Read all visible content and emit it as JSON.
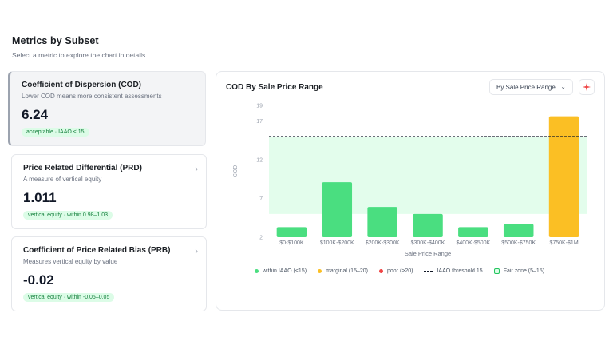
{
  "header": {
    "title": "Metrics by Subset",
    "subtitle": "Select a metric to explore the chart in details"
  },
  "metrics": [
    {
      "title": "Coefficient of Dispersion (COD)",
      "desc": "Lower COD means more consistent assessments",
      "value": "6.24",
      "badge": "acceptable · IAAO < 15"
    },
    {
      "title": "Price Related Differential (PRD)",
      "desc": "A measure of vertical equity",
      "value": "1.011",
      "badge": "vertical equity · within 0.98–1.03"
    },
    {
      "title": "Coefficient of Price Related Bias (PRB)",
      "desc": "Measures vertical equity by value",
      "value": "-0.02",
      "badge": "vertical equity · within -0.05–0.05"
    }
  ],
  "panel": {
    "title": "COD By Sale Price Range",
    "dropdown": "By Sale Price Range",
    "icons": {
      "chevron": "chevron-down-icon",
      "settings": "sparkle-icon",
      "card_chevron": "chevron-right-icon"
    }
  },
  "colors": {
    "within": "#4ade80",
    "marginal": "#fbbf24",
    "poor": "#ef4444",
    "fair_zone": "#dcfce7",
    "threshold": "#111827"
  },
  "chart_data": {
    "type": "bar",
    "xlabel": "Sale Price Range",
    "ylabel": "COD",
    "ylim": [
      2,
      19
    ],
    "yticks": [
      2,
      7,
      12,
      17,
      19
    ],
    "categories": [
      "$0-$100K",
      "$100K-$200K",
      "$200K-$300K",
      "$300K-$400K",
      "$400K-$500K",
      "$500K-$750K",
      "$750K-$1M"
    ],
    "values": [
      3.3,
      9.1,
      5.9,
      5.0,
      3.3,
      3.7,
      17.6
    ],
    "status": [
      "within",
      "within",
      "within",
      "within",
      "within",
      "within",
      "marginal"
    ],
    "threshold": 15,
    "fair_zone": [
      5,
      15
    ],
    "grid": false,
    "legend_position": "bottom",
    "legend": [
      {
        "key": "within",
        "label": "within IAAO (<15)"
      },
      {
        "key": "marginal",
        "label": "marginal (15–20)"
      },
      {
        "key": "poor",
        "label": "poor (>20)"
      },
      {
        "key": "threshold",
        "label": "IAAO threshold 15"
      },
      {
        "key": "fair_zone",
        "label": "Fair zone (5–15)"
      }
    ]
  }
}
